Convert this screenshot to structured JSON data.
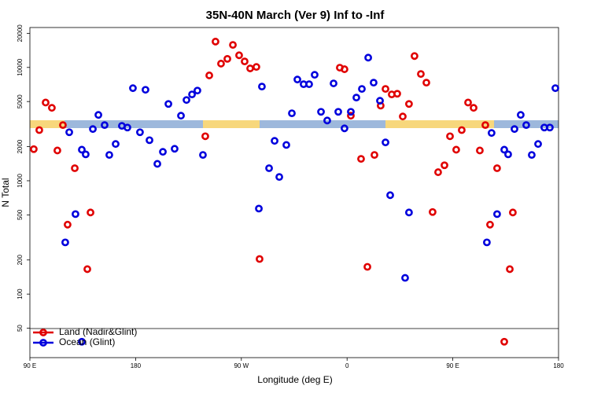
{
  "chart_data": {
    "type": "scatter",
    "title": "35N-40N March (Ver 9)   Inf to -Inf",
    "x_label": "Longitude (deg E)",
    "y_label": "N Total",
    "log_y": true,
    "legend": "bottom-left",
    "xlim": [
      90,
      540
    ],
    "xticks": [
      {
        "value": 90,
        "label": "90 E"
      },
      {
        "value": 180,
        "label": "180"
      },
      {
        "value": 270,
        "label": "90 W"
      },
      {
        "value": 360,
        "label": "0"
      },
      {
        "value": 450,
        "label": "90 E"
      },
      {
        "value": 540,
        "label": "180"
      }
    ],
    "ylim": [
      27.5,
      22500
    ],
    "yticks": [
      50,
      100,
      200,
      500,
      1000,
      2000,
      5000,
      10000,
      20000
    ],
    "series": [
      {
        "name": "Land (Nadir&Glint)",
        "color": "#e00000",
        "x": [
          93.3,
          98,
          103.4,
          108.7,
          113.4,
          118.1,
          122.1,
          128.2,
          138.9,
          141.6,
          239.3,
          242.7,
          248,
          252.7,
          258.1,
          262.8,
          268.1,
          272.8,
          277.5,
          282.8,
          285.5,
          353.8,
          357.8,
          363.2,
          371.9,
          377.3,
          383.3,
          388.6,
          392.7,
          398,
          402.7,
          407.4,
          412.7,
          417.4,
          422.8,
          427.5,
          432.8,
          437.5,
          442.9,
          447.6,
          452.9,
          457.6,
          463,
          467.7,
          473,
          477.7,
          481.7,
          487.7,
          493.8,
          498.5,
          501.1
        ],
        "values": [
          1900,
          2800,
          4900,
          4400,
          1850,
          3100,
          410,
          1290,
          166,
          525,
          2470,
          8500,
          16900,
          10800,
          11900,
          15800,
          12800,
          11300,
          9800,
          10100,
          204,
          9950,
          9640,
          3750,
          1560,
          174,
          1690,
          4600,
          6460,
          5780,
          5860,
          3690,
          4760,
          12600,
          8750,
          7340,
          530,
          1190,
          1370,
          2470,
          1880,
          2800,
          4900,
          4400,
          1850,
          3100,
          410,
          1290,
          38,
          166,
          525
        ]
      },
      {
        "name": "Ocean (Glint)",
        "color": "#0000dd",
        "x": [
          120.1,
          123.5,
          128.8,
          134.2,
          134.2,
          137.5,
          143.6,
          148.3,
          153.6,
          157.6,
          163,
          168.3,
          173,
          177.7,
          183.7,
          188.4,
          191.8,
          198.5,
          203.2,
          207.9,
          213.2,
          218.6,
          223.3,
          228,
          232.6,
          237.3,
          284.9,
          287.5,
          293.6,
          298.3,
          302.3,
          308.3,
          313,
          317.7,
          323,
          327.7,
          332.4,
          337.8,
          343.1,
          348.5,
          352.5,
          357.8,
          363.2,
          367.9,
          372.6,
          378,
          382.6,
          388,
          392.7,
          396.7,
          409.4,
          412.7,
          479,
          483,
          487.7,
          493.8,
          497.1,
          502.5,
          507.8,
          512.5,
          517.2,
          522.6,
          527.9,
          532.6,
          537.3
        ],
        "values": [
          286,
          2680,
          508,
          1880,
          38,
          1710,
          2860,
          3810,
          3100,
          1690,
          2110,
          3050,
          2950,
          6560,
          2680,
          6350,
          2280,
          1410,
          1800,
          4760,
          1915,
          3750,
          5160,
          5780,
          6250,
          1690,
          568,
          6780,
          1290,
          2250,
          1080,
          2070,
          3940,
          7820,
          7110,
          7110,
          8610,
          4060,
          3400,
          7230,
          4060,
          2900,
          4060,
          5420,
          6460,
          12200,
          7340,
          5080,
          2180,
          746,
          139,
          525,
          286,
          2640,
          508,
          1880,
          1710,
          2860,
          3810,
          3100,
          1690,
          2110,
          2950,
          2950,
          6560
        ]
      }
    ]
  }
}
